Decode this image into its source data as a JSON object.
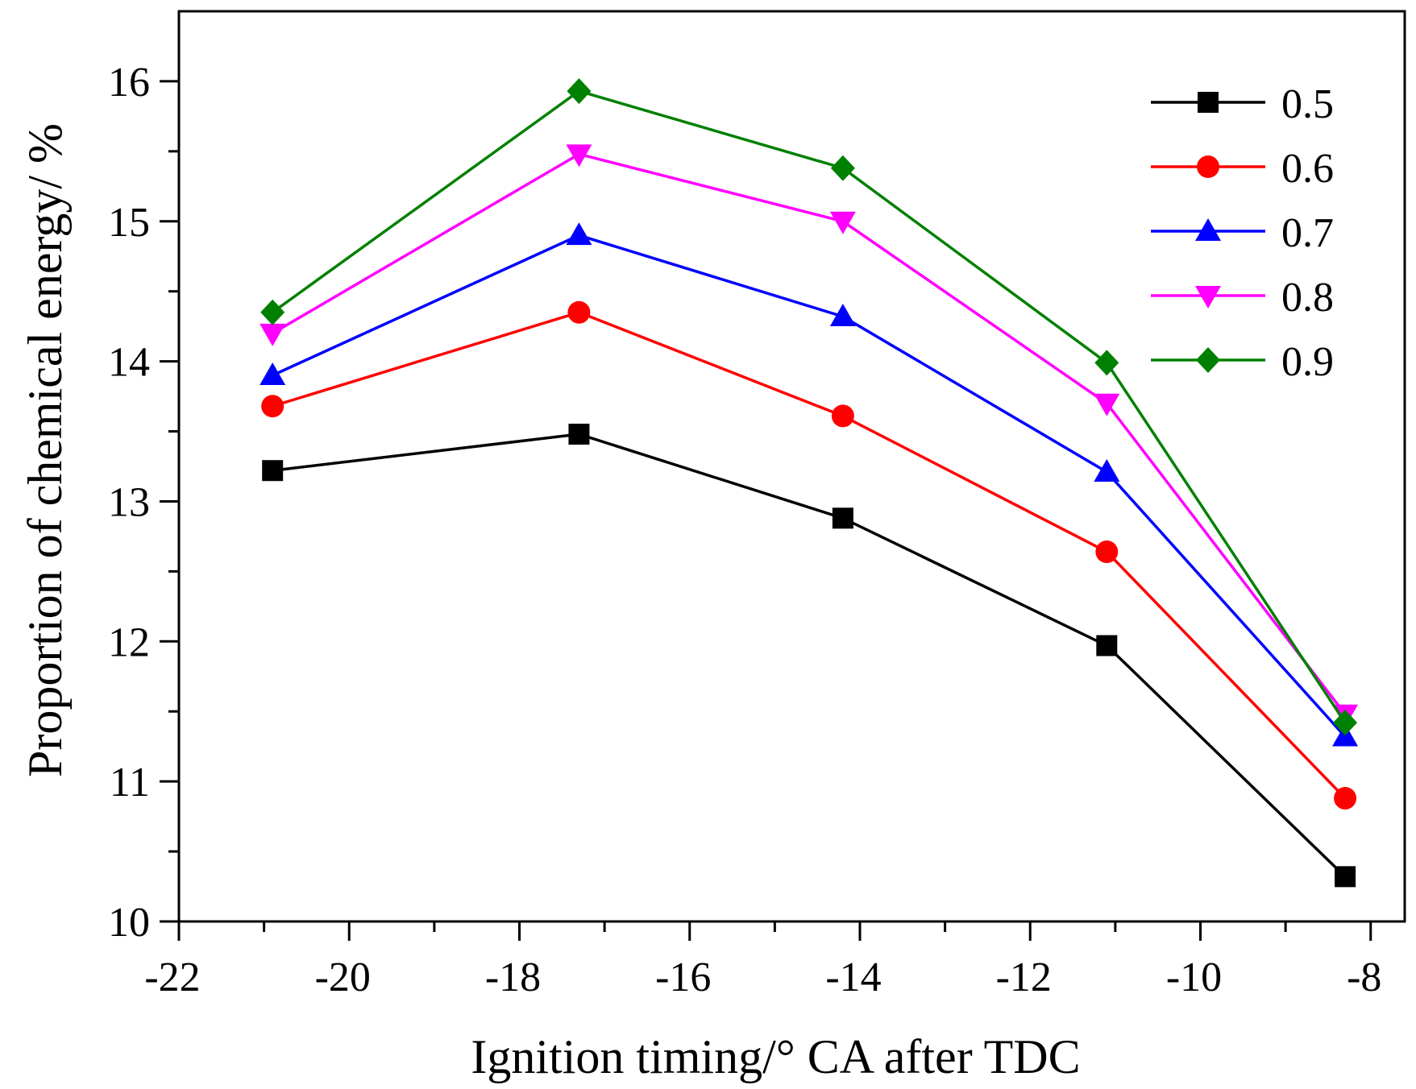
{
  "chart_data": {
    "type": "line",
    "title": "",
    "xlabel": "Ignition timing/° CA after TDC",
    "ylabel": "Proportion of chemical energy/ %",
    "xlim": [
      -22,
      -7.6
    ],
    "ylim": [
      10,
      16.5
    ],
    "xticks": [
      -22,
      -20,
      -18,
      -16,
      -14,
      -12,
      -10,
      -8
    ],
    "xtick_labels": [
      "-22",
      "-20",
      "-18",
      "-16",
      "-14",
      "-12",
      "-10",
      "-8"
    ],
    "yticks": [
      10,
      11,
      12,
      13,
      14,
      15,
      16
    ],
    "ytick_labels": [
      "10",
      "11",
      "12",
      "13",
      "14",
      "15",
      "16"
    ],
    "grid": false,
    "legend_position": "top-right",
    "x": [
      -20.9,
      -17.3,
      -14.2,
      -11.1,
      -8.3
    ],
    "series": [
      {
        "name": "0.5",
        "color": "#000000",
        "marker": "square",
        "values": [
          13.22,
          13.48,
          12.88,
          11.97,
          10.32
        ]
      },
      {
        "name": "0.6",
        "color": "#ff0000",
        "marker": "circle",
        "values": [
          13.68,
          14.35,
          13.61,
          12.64,
          10.88
        ]
      },
      {
        "name": "0.7",
        "color": "#0000ff",
        "marker": "triangle-up",
        "values": [
          13.9,
          14.9,
          14.32,
          13.21,
          11.32
        ]
      },
      {
        "name": "0.8",
        "color": "#ff00ff",
        "marker": "triangle-down",
        "values": [
          14.2,
          15.48,
          15.0,
          13.7,
          11.48
        ]
      },
      {
        "name": "0.9",
        "color": "#008000",
        "marker": "diamond",
        "values": [
          14.35,
          15.93,
          15.38,
          13.99,
          11.42
        ]
      }
    ]
  }
}
